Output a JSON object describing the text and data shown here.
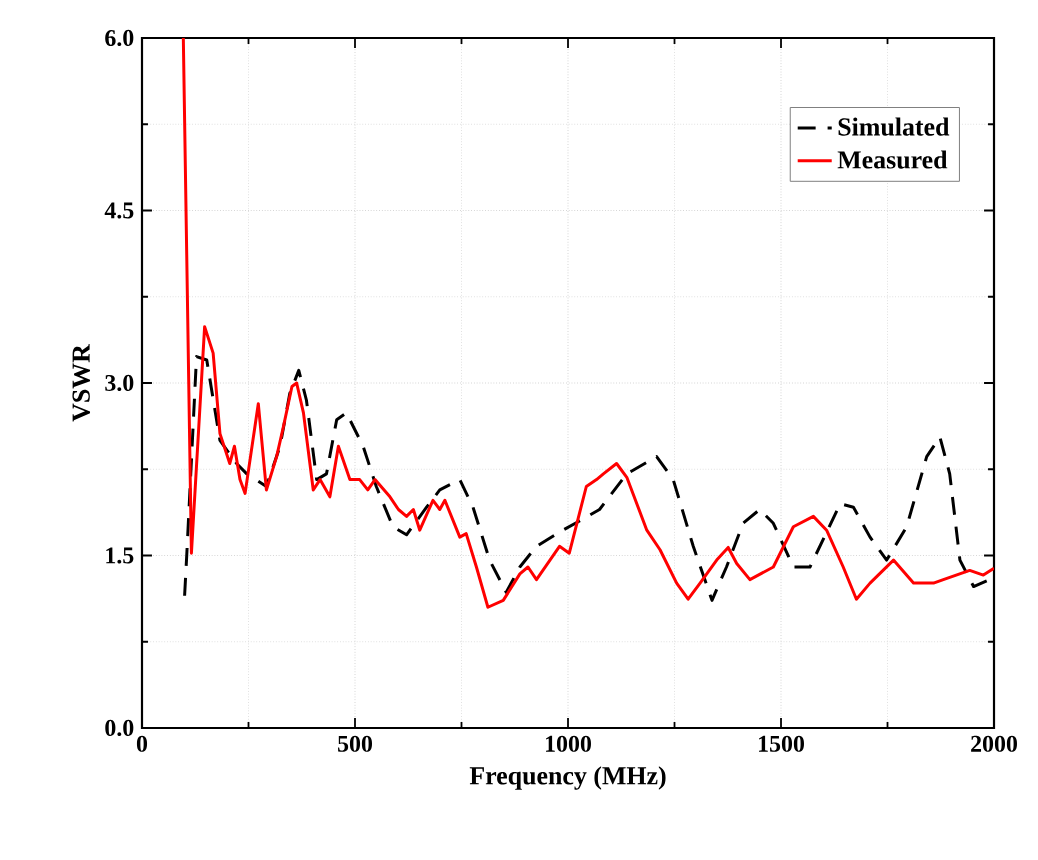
{
  "chart_data": {
    "type": "line",
    "xlabel": "Frequency (MHz)",
    "ylabel": "VSWR",
    "xlim": [
      0,
      2000
    ],
    "xticks": [
      0,
      500,
      1000,
      1500,
      2000
    ],
    "ylim": [
      0,
      6
    ],
    "yticks": [
      {
        "value": 0,
        "label": "0.0"
      },
      1.5,
      {
        "value": 3,
        "label": "3.0"
      },
      4.5,
      {
        "value": 6,
        "label": "6.0"
      }
    ],
    "grid": true,
    "legend": "top right",
    "marker": "none",
    "series": [
      {
        "name": "Simulated",
        "color": "#000000",
        "line_style": "dashed",
        "x": [
          100,
          105,
          128,
          152,
          183,
          222,
          246,
          292,
          324,
          347,
          368,
          386,
          410,
          433,
          457,
          480,
          519,
          550,
          589,
          621,
          668,
          699,
          746,
          777,
          816,
          855,
          887,
          926,
          988,
          1027,
          1074,
          1138,
          1208,
          1247,
          1294,
          1338,
          1372,
          1411,
          1450,
          1482,
          1529,
          1568,
          1639,
          1670,
          1709,
          1748,
          1795,
          1842,
          1873,
          1896,
          1920,
          1952,
          1990,
          2000
        ],
        "values": [
          1.15,
          1.5,
          3.23,
          3.2,
          2.5,
          2.3,
          2.21,
          2.1,
          2.45,
          2.91,
          3.11,
          2.85,
          2.16,
          2.21,
          2.68,
          2.74,
          2.45,
          2.1,
          1.75,
          1.68,
          1.92,
          2.07,
          2.16,
          1.92,
          1.46,
          1.18,
          1.4,
          1.58,
          1.72,
          1.8,
          1.9,
          2.21,
          2.36,
          2.16,
          1.58,
          1.11,
          1.4,
          1.78,
          1.9,
          1.78,
          1.4,
          1.4,
          1.95,
          1.92,
          1.66,
          1.46,
          1.75,
          2.36,
          2.53,
          2.21,
          1.46,
          1.23,
          1.29,
          1.32
        ]
      },
      {
        "name": "Measured",
        "color": "#ff0000",
        "line_style": "solid",
        "x": [
          97,
          116,
          147,
          167,
          183,
          206,
          217,
          230,
          242,
          273,
          292,
          316,
          332,
          352,
          363,
          379,
          402,
          418,
          441,
          461,
          488,
          511,
          530,
          547,
          582,
          602,
          621,
          637,
          652,
          683,
          699,
          711,
          746,
          761,
          785,
          812,
          848,
          887,
          906,
          926,
          980,
          1003,
          1043,
          1067,
          1083,
          1114,
          1138,
          1185,
          1216,
          1255,
          1282,
          1310,
          1349,
          1376,
          1396,
          1427,
          1482,
          1529,
          1576,
          1607,
          1646,
          1677,
          1709,
          1764,
          1811,
          1858,
          1881,
          1943,
          1975,
          2000
        ],
        "values": [
          6.0,
          1.52,
          3.49,
          3.26,
          2.56,
          2.3,
          2.45,
          2.16,
          2.04,
          2.82,
          2.07,
          2.36,
          2.62,
          2.97,
          3.0,
          2.74,
          2.07,
          2.16,
          2.01,
          2.45,
          2.16,
          2.16,
          2.07,
          2.16,
          2.01,
          1.9,
          1.84,
          1.9,
          1.72,
          1.98,
          1.9,
          1.98,
          1.66,
          1.69,
          1.4,
          1.05,
          1.11,
          1.34,
          1.4,
          1.29,
          1.58,
          1.52,
          2.1,
          2.16,
          2.21,
          2.3,
          2.18,
          1.72,
          1.55,
          1.26,
          1.12,
          1.26,
          1.46,
          1.57,
          1.43,
          1.29,
          1.4,
          1.75,
          1.84,
          1.72,
          1.4,
          1.12,
          1.26,
          1.46,
          1.26,
          1.26,
          1.29,
          1.37,
          1.33,
          1.39
        ]
      }
    ]
  }
}
